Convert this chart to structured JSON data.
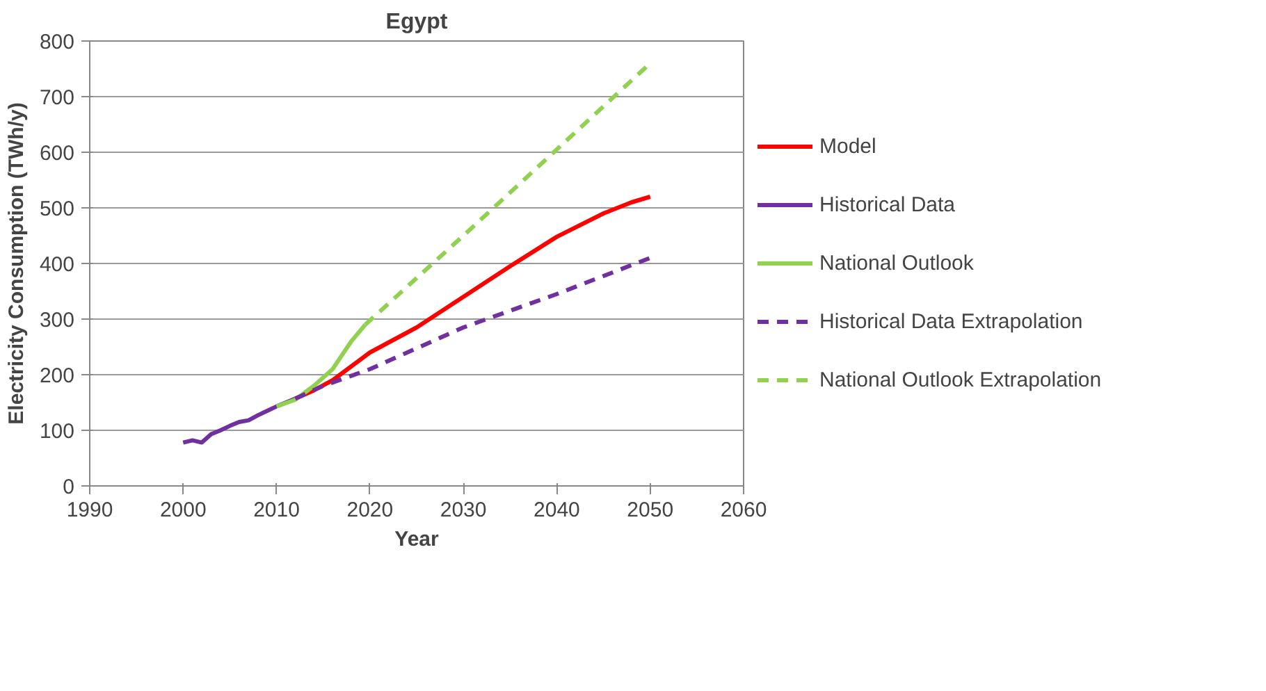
{
  "chart_data": {
    "type": "line",
    "title": "Egypt",
    "xlabel": "Year",
    "ylabel": "Electricity Consumption (TWh/y)",
    "xlim": [
      1990,
      2060
    ],
    "xticks": [
      1990,
      2000,
      2010,
      2020,
      2030,
      2040,
      2050,
      2060
    ],
    "ylim": [
      0,
      800
    ],
    "yticks": [
      0,
      100,
      200,
      300,
      400,
      500,
      600,
      700,
      800
    ],
    "grid": "y",
    "legend": "right",
    "marker": "none",
    "series": [
      {
        "name": "Model",
        "color": "#ff0000",
        "line_style": "solid",
        "x": [
          2012,
          2014,
          2016,
          2018,
          2020,
          2025,
          2030,
          2035,
          2040,
          2045,
          2048,
          2050
        ],
        "values": [
          157,
          172,
          190,
          215,
          240,
          285,
          340,
          395,
          448,
          490,
          510,
          520
        ]
      },
      {
        "name": "Historical Data",
        "color": "#7030a0",
        "line_style": "solid",
        "x": [
          2000,
          2001,
          2002,
          2003,
          2004,
          2005,
          2006,
          2007,
          2008,
          2009,
          2010,
          2011,
          2012
        ],
        "values": [
          78,
          82,
          78,
          93,
          100,
          108,
          115,
          118,
          127,
          135,
          143,
          150,
          157
        ]
      },
      {
        "name": "National Outlook",
        "color": "#92d050",
        "line_style": "solid",
        "x": [
          2010,
          2012,
          2014,
          2016,
          2018,
          2019.5
        ],
        "values": [
          143,
          155,
          180,
          210,
          260,
          290
        ]
      },
      {
        "name": "Historical Data Extrapolation",
        "color": "#7030a0",
        "line_style": "dashed",
        "x": [
          2012,
          2015,
          2020,
          2030,
          2040,
          2050
        ],
        "values": [
          157,
          180,
          210,
          285,
          345,
          410
        ]
      },
      {
        "name": "National Outlook Extrapolation",
        "color": "#92d050",
        "line_style": "dashed",
        "x": [
          2019.5,
          2030,
          2040,
          2050
        ],
        "values": [
          290,
          450,
          605,
          760
        ]
      }
    ]
  }
}
